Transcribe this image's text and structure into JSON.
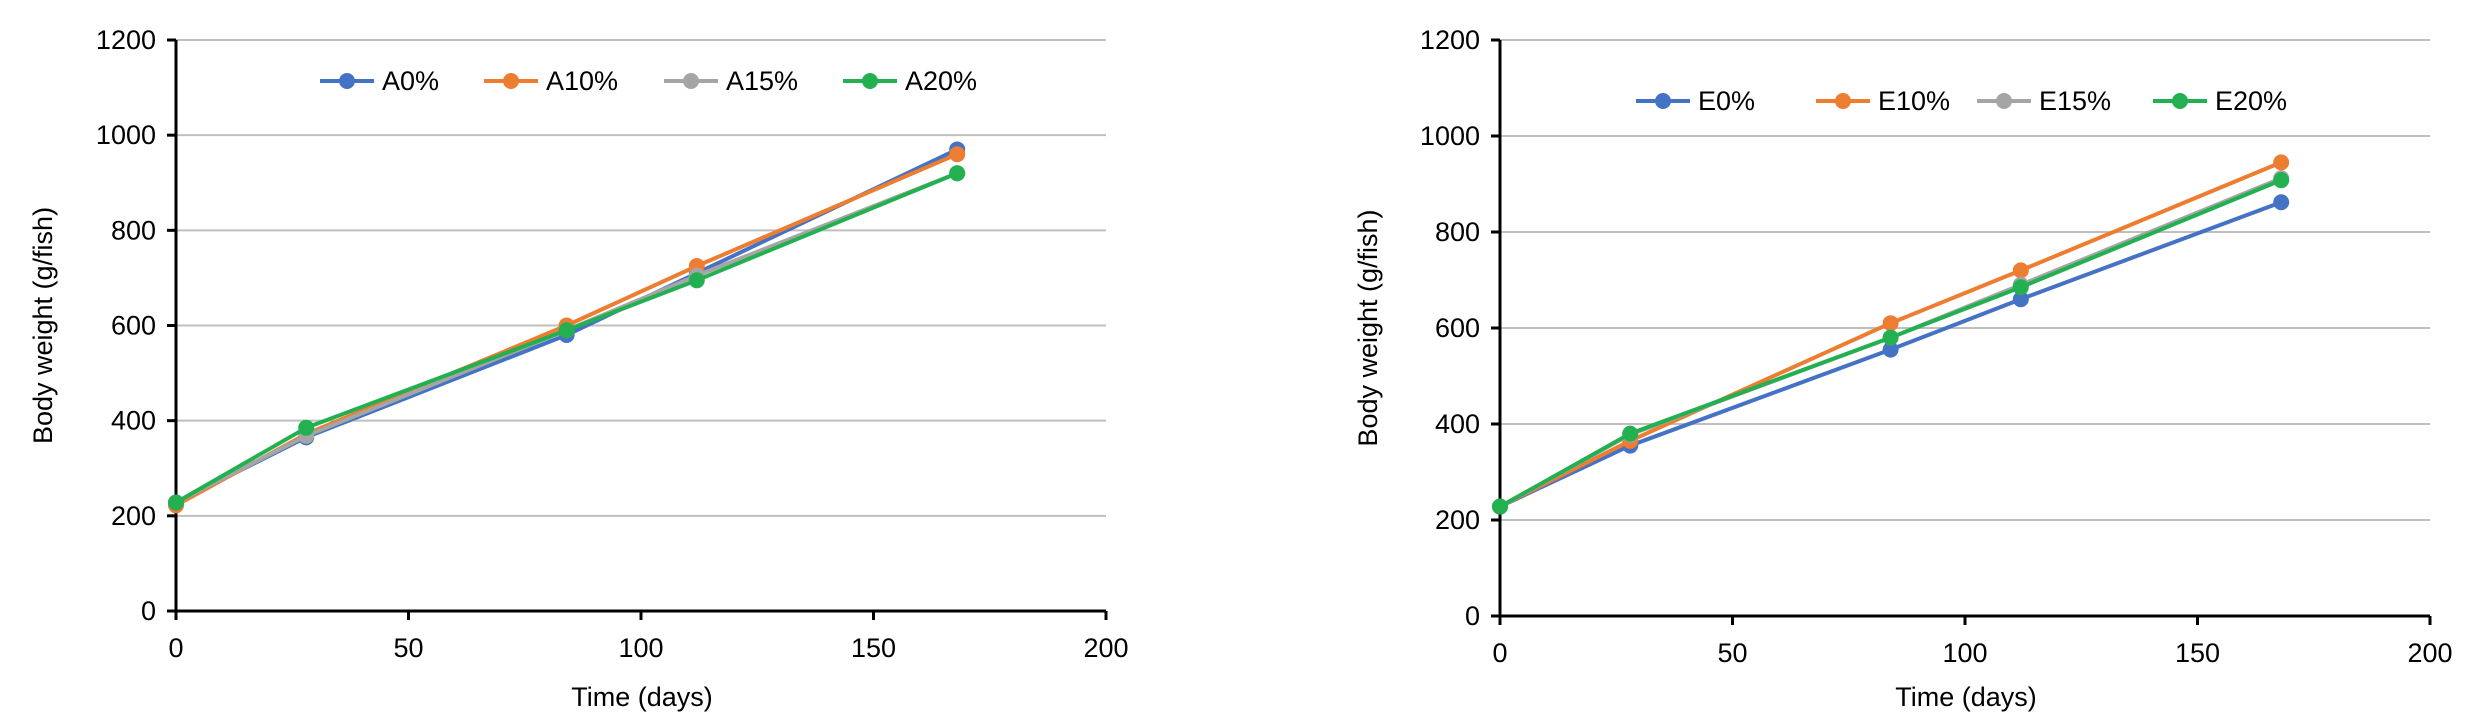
{
  "chart_data": [
    {
      "type": "line",
      "ylabel": "Body weight (g/fish)",
      "xlabel": "Time (days)",
      "ylim": [
        0,
        1200
      ],
      "xlim": [
        0,
        200
      ],
      "yticks": [
        0,
        200,
        400,
        600,
        800,
        1000,
        1200
      ],
      "xticks": [
        0,
        50,
        100,
        150,
        200
      ],
      "grid": "horizontal",
      "legend_position": "top",
      "x": [
        0,
        28,
        84,
        112,
        168
      ],
      "series": [
        {
          "name": "A0%",
          "color": "#4472C4",
          "values": [
            228,
            365,
            580,
            710,
            970
          ]
        },
        {
          "name": "A10%",
          "color": "#ED7D31",
          "values": [
            222,
            372,
            600,
            725,
            960
          ]
        },
        {
          "name": "A15%",
          "color": "#A5A5A5",
          "values": [
            228,
            368,
            590,
            705,
            920
          ]
        },
        {
          "name": "A20%",
          "color": "#22B050",
          "values": [
            228,
            385,
            590,
            695,
            920
          ]
        }
      ]
    },
    {
      "type": "line",
      "ylabel": "Body weight (g/fish)",
      "xlabel": "Time (days)",
      "ylim": [
        0,
        1200
      ],
      "xlim": [
        0,
        200
      ],
      "yticks": [
        0,
        200,
        400,
        600,
        800,
        1000,
        1200
      ],
      "xticks": [
        0,
        50,
        100,
        150,
        200
      ],
      "grid": "horizontal",
      "legend_position": "top",
      "x": [
        0,
        28,
        84,
        112,
        168
      ],
      "series": [
        {
          "name": "E0%",
          "color": "#4472C4",
          "values": [
            228,
            355,
            555,
            660,
            862
          ]
        },
        {
          "name": "E10%",
          "color": "#ED7D31",
          "values": [
            228,
            365,
            610,
            720,
            945
          ]
        },
        {
          "name": "E15%",
          "color": "#A5A5A5",
          "values": [
            228,
            378,
            580,
            690,
            912
          ]
        },
        {
          "name": "E20%",
          "color": "#22B050",
          "values": [
            228,
            380,
            580,
            685,
            908
          ]
        }
      ]
    }
  ]
}
